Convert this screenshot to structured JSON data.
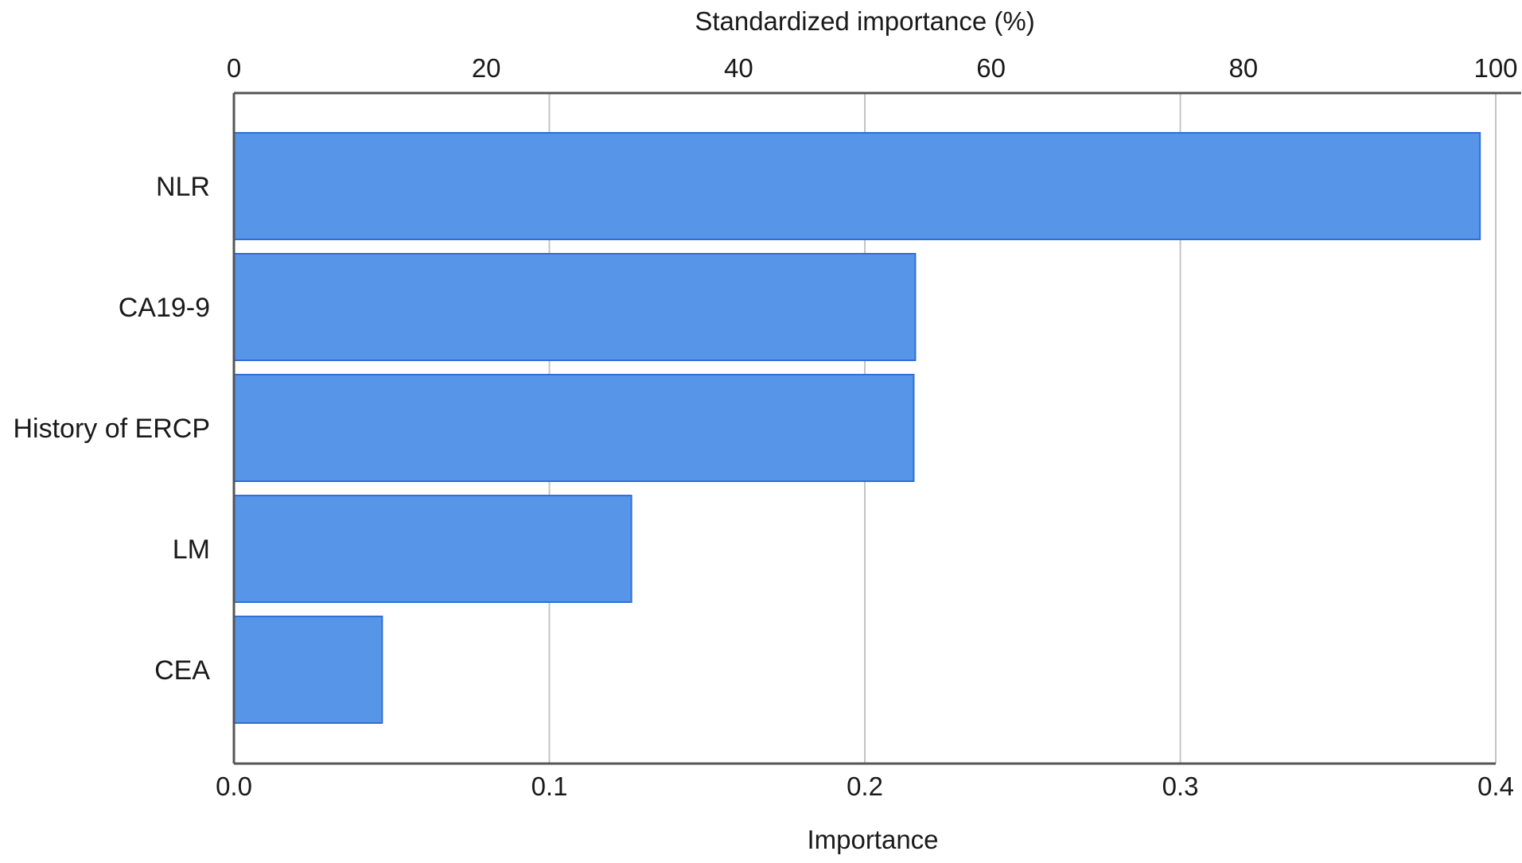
{
  "chart_data": {
    "type": "bar",
    "orientation": "horizontal",
    "categories": [
      "NLR",
      "CA19-9",
      "History of ERCP",
      "LM",
      "CEA"
    ],
    "values": [
      0.395,
      0.216,
      0.2155,
      0.126,
      0.047
    ],
    "xlabel": "Importance",
    "x2label": "Standardized importance (%)",
    "xlim": [
      0,
      0.4
    ],
    "xticks": [
      "0.0",
      "0.1",
      "0.2",
      "0.3",
      "0.4"
    ],
    "x2lim": [
      0,
      100
    ],
    "x2ticks": [
      "0",
      "20",
      "40",
      "60",
      "80",
      "100"
    ],
    "grid": true,
    "bar_color": "#5795E8",
    "bar_edge_color": "#2F6FD6",
    "grid_color": "#c4c4c4",
    "axis_color": "#555555"
  }
}
